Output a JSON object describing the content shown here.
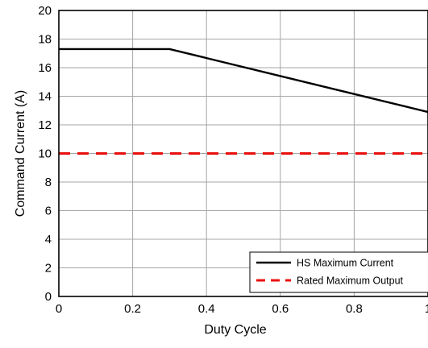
{
  "chart_data": {
    "type": "line",
    "title": "",
    "xlabel": "Duty Cycle",
    "ylabel": "Command Current (A)",
    "xlim": [
      0,
      1
    ],
    "ylim": [
      0,
      20
    ],
    "x_ticks": [
      0,
      0.2,
      0.4,
      0.6,
      0.8,
      1
    ],
    "x_tick_labels": [
      "0",
      "0.2",
      "0.4",
      "0.6",
      "0.8",
      "1"
    ],
    "y_ticks": [
      0,
      2,
      4,
      6,
      8,
      10,
      12,
      14,
      16,
      18,
      20
    ],
    "y_tick_labels": [
      "0",
      "2",
      "4",
      "6",
      "8",
      "10",
      "12",
      "14",
      "16",
      "18",
      "20"
    ],
    "grid": true,
    "legend_position": "bottom-right",
    "series": [
      {
        "name": "HS Maximum Current",
        "color": "#000000",
        "style": "solid",
        "x": [
          0,
          0.3,
          1.0
        ],
        "y": [
          17.3,
          17.3,
          12.9
        ]
      },
      {
        "name": "Rated Maximum Output",
        "color": "#e8100f",
        "style": "dashed",
        "x": [
          0,
          1.0
        ],
        "y": [
          10,
          10
        ]
      }
    ]
  }
}
